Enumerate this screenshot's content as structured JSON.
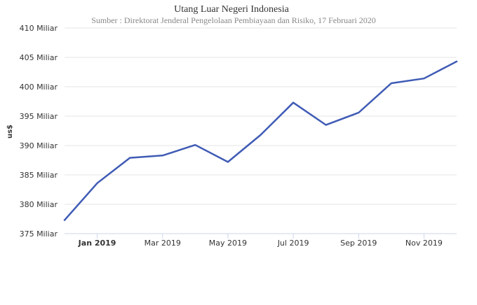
{
  "chart_data": {
    "type": "line",
    "title": "Utang Luar Negeri Indonesia",
    "subtitle": "Sumber : Direktorat Jenderal Pengelolaan Pembiayaan dan Risiko, 17 Februari 2020",
    "ylabel": "us$",
    "xlabel": "",
    "ylim": [
      375,
      410
    ],
    "yticks": [
      375,
      380,
      385,
      390,
      395,
      400,
      405,
      410
    ],
    "ytick_labels": [
      "375 Miliar",
      "380 Miliar",
      "385 Miliar",
      "390 Miliar",
      "395 Miliar",
      "400 Miliar",
      "405 Miliar",
      "410 Miliar"
    ],
    "x_tick_labels": [
      {
        "index": 1,
        "label": "Jan 2019",
        "bold": true
      },
      {
        "index": 3,
        "label": "Mar 2019",
        "bold": false
      },
      {
        "index": 5,
        "label": "May 2019",
        "bold": false
      },
      {
        "index": 7,
        "label": "Jul 2019",
        "bold": false
      },
      {
        "index": 9,
        "label": "Sep 2019",
        "bold": false
      },
      {
        "index": 11,
        "label": "Nov 2019",
        "bold": false
      }
    ],
    "x": [
      "Dec 2018",
      "Jan 2019",
      "Feb 2019",
      "Mar 2019",
      "Apr 2019",
      "May 2019",
      "Jun 2019",
      "Jul 2019",
      "Aug 2019",
      "Sep 2019",
      "Oct 2019",
      "Nov 2019",
      "Dec 2019"
    ],
    "series": [
      {
        "values": [
          377.3,
          383.6,
          387.9,
          388.3,
          390.1,
          387.2,
          391.8,
          397.3,
          393.5,
          395.6,
          400.6,
          401.4,
          404.3
        ],
        "color": "#3f5bb5"
      }
    ],
    "grid": "horizontal",
    "legend": "none"
  }
}
